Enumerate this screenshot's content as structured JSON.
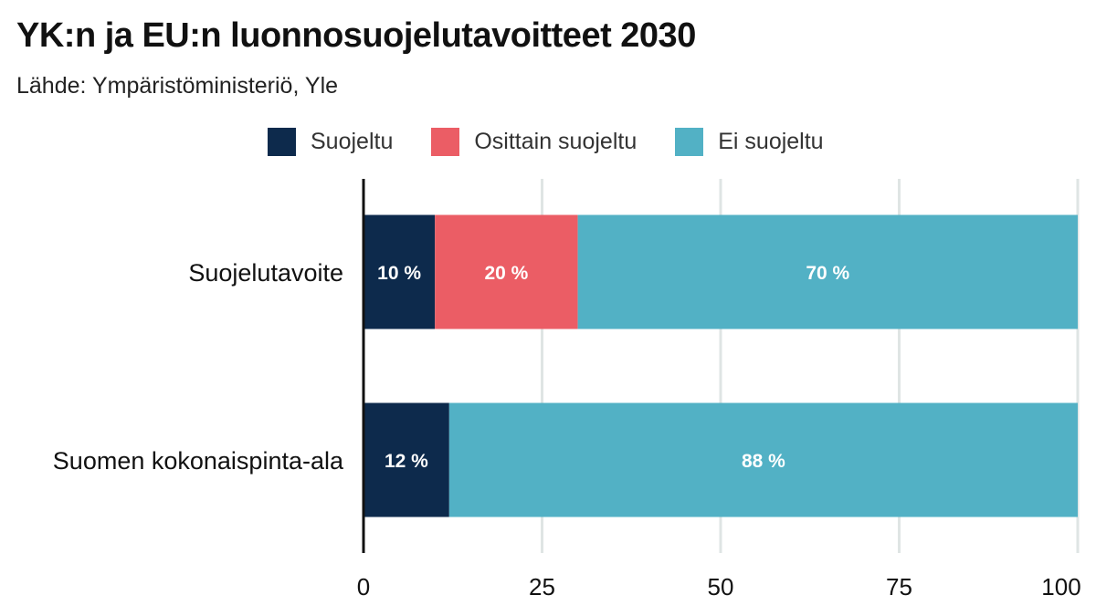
{
  "title": "YK:n ja EU:n luonnosuojelutavoitteet 2030",
  "subtitle": "Lähde: Ympäristöministeriö, Yle",
  "chart_data": {
    "type": "bar",
    "orientation": "horizontal",
    "stacked": true,
    "categories": [
      "Suojelutavoite",
      "Suomen kokonaispinta-ala"
    ],
    "series": [
      {
        "name": "Suojeltu",
        "color": "#0d2a4c",
        "values": [
          10,
          12
        ],
        "labels": [
          "10 %",
          "12 %"
        ]
      },
      {
        "name": "Osittain suojeltu",
        "color": "#eb5d65",
        "values": [
          20,
          0
        ],
        "labels": [
          "20 %",
          ""
        ]
      },
      {
        "name": "Ei suojeltu",
        "color": "#52b1c5",
        "values": [
          70,
          88
        ],
        "labels": [
          "70 %",
          "88 %"
        ]
      }
    ],
    "xlim": [
      0,
      100
    ],
    "xticks": [
      0,
      25,
      50,
      75,
      100
    ],
    "grid": true,
    "legend_position": "top"
  }
}
